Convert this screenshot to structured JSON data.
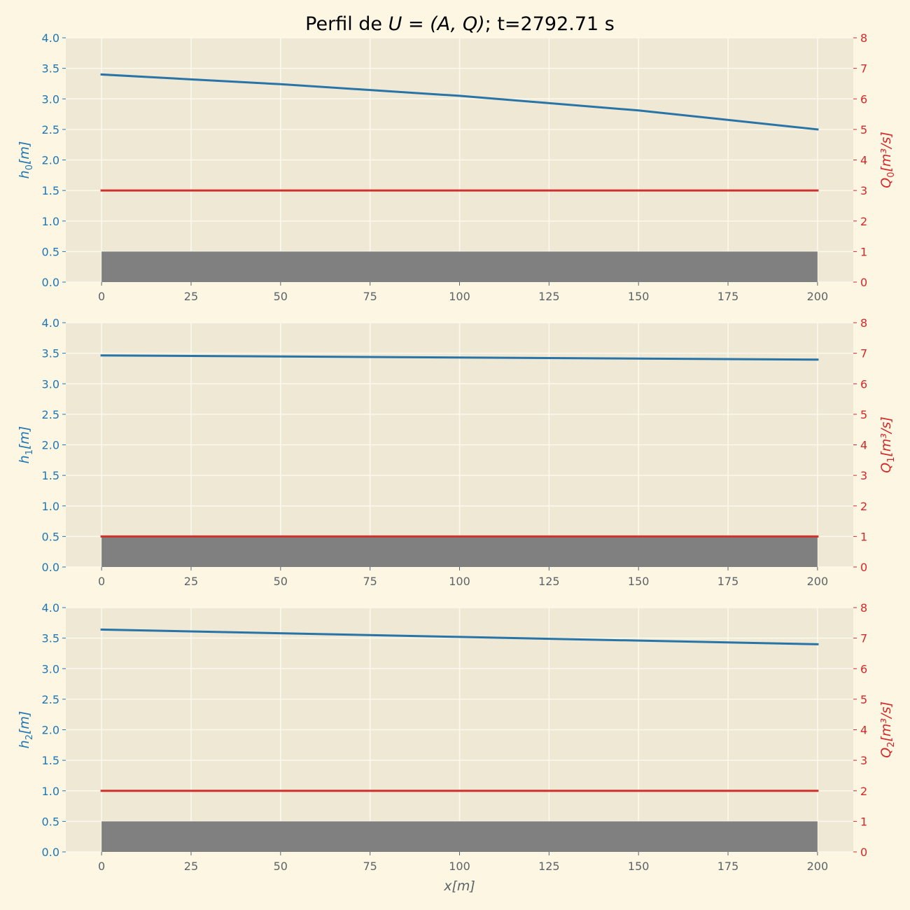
{
  "title": {
    "prefix": "Perfil de ",
    "math": "U = (A, Q)",
    "suffix": "; t=2792.71 s"
  },
  "colors": {
    "figure_bg": "#fdf6e3",
    "axes_bg": "#eee8d5",
    "grid": "#fbf8ee",
    "h_line": "#2874a6",
    "q_line": "#d0312d",
    "bed": "#808080",
    "left_axis": "#1f77b4",
    "right_axis": "#d62728",
    "x_axis": "#5b6468"
  },
  "chart_data": [
    {
      "type": "line",
      "xlim": [
        -10,
        210
      ],
      "x_ticks": [
        0,
        25,
        50,
        75,
        100,
        125,
        150,
        175,
        200
      ],
      "y_left": {
        "label_base": "h",
        "label_sub": "0",
        "label_unit": "[m]",
        "lim": [
          0,
          4
        ],
        "ticks": [
          "0.0",
          "0.5",
          "1.0",
          "1.5",
          "2.0",
          "2.5",
          "3.0",
          "3.5",
          "4.0"
        ]
      },
      "y_right": {
        "label_base": "Q",
        "label_sub": "0",
        "label_unit": "[m³/s]",
        "lim": [
          0,
          8
        ],
        "ticks": [
          "0",
          "1",
          "2",
          "3",
          "4",
          "5",
          "6",
          "7",
          "8"
        ]
      },
      "bed": {
        "x": [
          0,
          200
        ],
        "height": 0.5
      },
      "series": [
        {
          "axis": "left",
          "x": [
            0,
            50,
            100,
            150,
            200
          ],
          "y": [
            3.4,
            3.24,
            3.05,
            2.81,
            2.5
          ]
        },
        {
          "axis": "right",
          "x": [
            0,
            200
          ],
          "y": [
            3.0,
            3.0
          ]
        }
      ],
      "grid": true
    },
    {
      "type": "line",
      "xlim": [
        -10,
        210
      ],
      "x_ticks": [
        0,
        25,
        50,
        75,
        100,
        125,
        150,
        175,
        200
      ],
      "y_left": {
        "label_base": "h",
        "label_sub": "1",
        "label_unit": "[m]",
        "lim": [
          0,
          4
        ],
        "ticks": [
          "0.0",
          "0.5",
          "1.0",
          "1.5",
          "2.0",
          "2.5",
          "3.0",
          "3.5",
          "4.0"
        ]
      },
      "y_right": {
        "label_base": "Q",
        "label_sub": "1",
        "label_unit": "[m³/s]",
        "lim": [
          0,
          8
        ],
        "ticks": [
          "0",
          "1",
          "2",
          "3",
          "4",
          "5",
          "6",
          "7",
          "8"
        ]
      },
      "bed": {
        "x": [
          0,
          200
        ],
        "height": 0.5
      },
      "series": [
        {
          "axis": "left",
          "x": [
            0,
            100,
            200
          ],
          "y": [
            3.465,
            3.43,
            3.395
          ]
        },
        {
          "axis": "right",
          "x": [
            0,
            200
          ],
          "y": [
            1.0,
            1.0
          ]
        }
      ],
      "grid": true
    },
    {
      "type": "line",
      "xlim": [
        -10,
        210
      ],
      "x_ticks": [
        0,
        25,
        50,
        75,
        100,
        125,
        150,
        175,
        200
      ],
      "y_left": {
        "label_base": "h",
        "label_sub": "2",
        "label_unit": "[m]",
        "lim": [
          0,
          4
        ],
        "ticks": [
          "0.0",
          "0.5",
          "1.0",
          "1.5",
          "2.0",
          "2.5",
          "3.0",
          "3.5",
          "4.0"
        ]
      },
      "y_right": {
        "label_base": "Q",
        "label_sub": "2",
        "label_unit": "[m³/s]",
        "lim": [
          0,
          8
        ],
        "ticks": [
          "0",
          "1",
          "2",
          "3",
          "4",
          "5",
          "6",
          "7",
          "8"
        ]
      },
      "xlabel": {
        "base": "x",
        "unit": "[m]"
      },
      "bed": {
        "x": [
          0,
          200
        ],
        "height": 0.5
      },
      "series": [
        {
          "axis": "left",
          "x": [
            0,
            100,
            200
          ],
          "y": [
            3.64,
            3.52,
            3.4
          ]
        },
        {
          "axis": "right",
          "x": [
            0,
            200
          ],
          "y": [
            2.0,
            2.0
          ]
        }
      ],
      "grid": true
    }
  ]
}
